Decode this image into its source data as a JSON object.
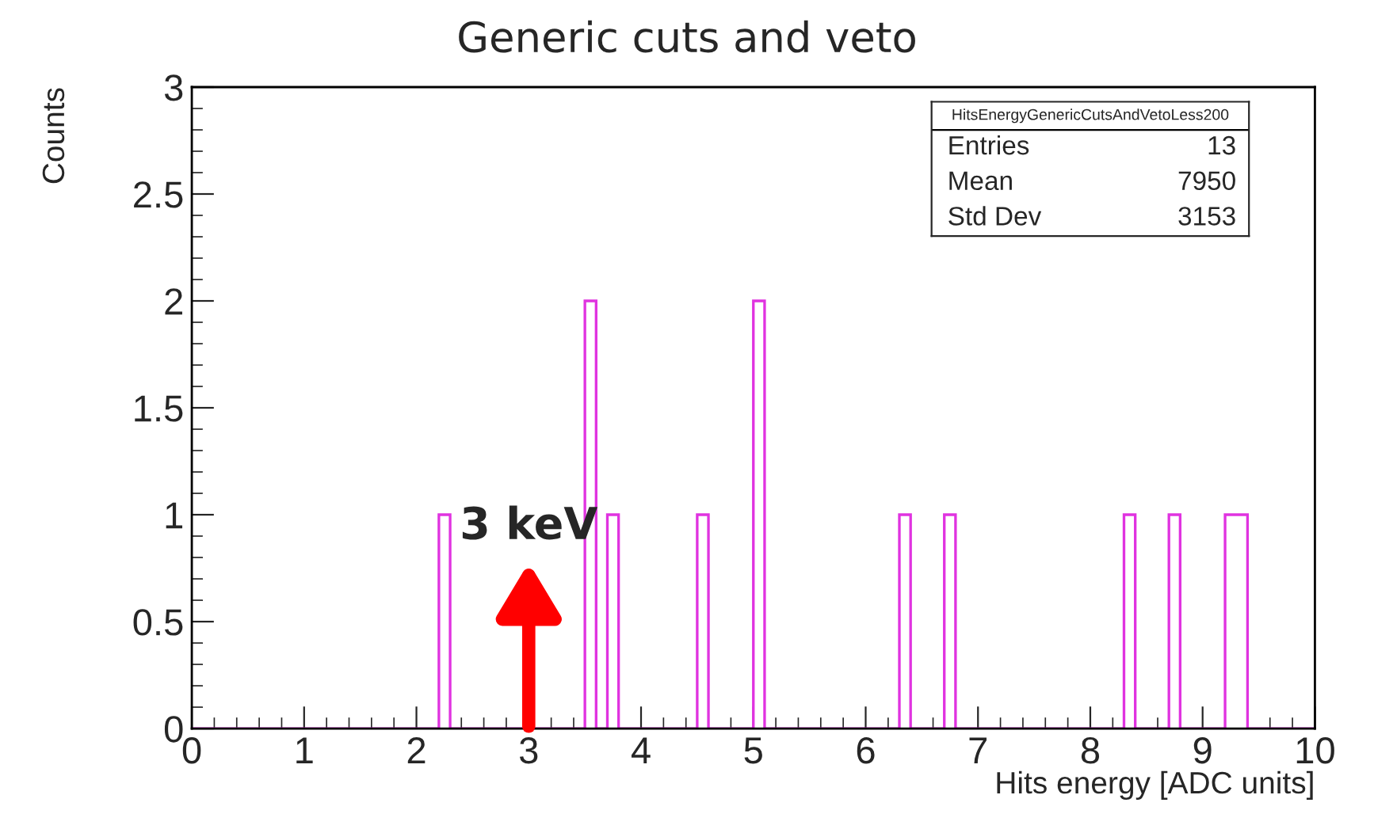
{
  "chart_data": {
    "type": "histogram",
    "title": "Generic cuts and veto",
    "xlabel": "Hits energy [ADC units]",
    "ylabel": "Counts",
    "bins": [
      0,
      0.1,
      0.2,
      0.3,
      0.4,
      0.5,
      0.6,
      0.7,
      0.8,
      0.9,
      1,
      1.1,
      1.2,
      1.3,
      1.4,
      1.5,
      1.6,
      1.7,
      1.8,
      1.9,
      2,
      2.1,
      2.2,
      2.3,
      2.4,
      2.5,
      2.6,
      2.7,
      2.8,
      2.9,
      3,
      3.1,
      3.2,
      3.3,
      3.4,
      3.5,
      3.6,
      3.7,
      3.8,
      3.9,
      4,
      4.1,
      4.2,
      4.3,
      4.4,
      4.5,
      4.6,
      4.7,
      4.8,
      4.9,
      5,
      5.1,
      5.2,
      5.3,
      5.4,
      5.5,
      5.6,
      5.7,
      5.8,
      5.9,
      6,
      6.1,
      6.2,
      6.3,
      6.4,
      6.5,
      6.6,
      6.7,
      6.8,
      6.9,
      7,
      7.1,
      7.2,
      7.3,
      7.4,
      7.5,
      7.6,
      7.7,
      7.8,
      7.9,
      8,
      8.1,
      8.2,
      8.3,
      8.4,
      8.5,
      8.6,
      8.7,
      8.8,
      8.9,
      9,
      9.1,
      9.2,
      9.3,
      9.4,
      9.5,
      9.6,
      9.7,
      9.8,
      9.9,
      10
    ],
    "values": [
      0,
      0,
      0,
      0,
      0,
      0,
      0,
      0,
      0,
      0,
      0,
      0,
      0,
      0,
      0,
      0,
      0,
      0,
      0,
      0,
      0,
      0,
      1,
      0,
      0,
      0,
      0,
      0,
      0,
      0,
      0,
      0,
      0,
      0,
      0,
      2,
      0,
      1,
      0,
      0,
      0,
      0,
      0,
      0,
      0,
      1,
      0,
      0,
      0,
      0,
      2,
      0,
      0,
      0,
      0,
      0,
      0,
      0,
      0,
      0,
      0,
      0,
      0,
      1,
      0,
      0,
      0,
      1,
      0,
      0,
      0,
      0,
      0,
      0,
      0,
      0,
      0,
      0,
      0,
      0,
      0,
      0,
      0,
      1,
      0,
      0,
      0,
      1,
      0,
      0,
      0,
      0,
      1,
      1,
      0,
      0,
      0,
      0,
      0,
      0
    ],
    "color": "#e033e0",
    "xlim": [
      0,
      10
    ],
    "xticks": [
      0,
      1,
      2,
      3,
      4,
      5,
      6,
      7,
      8,
      9,
      10
    ],
    "ylim": [
      0,
      3
    ],
    "yticks": [
      0,
      0.5,
      1,
      1.5,
      2,
      2.5,
      3
    ],
    "grid": false,
    "legend": false,
    "annotations": [
      {
        "text": "3 keV",
        "x": 3,
        "y": 0
      },
      "HitsEnergyGenericCutsAndVetoLess200",
      "Entries",
      "13",
      "Mean",
      "7950",
      "Std Dev",
      "3153"
    ]
  }
}
